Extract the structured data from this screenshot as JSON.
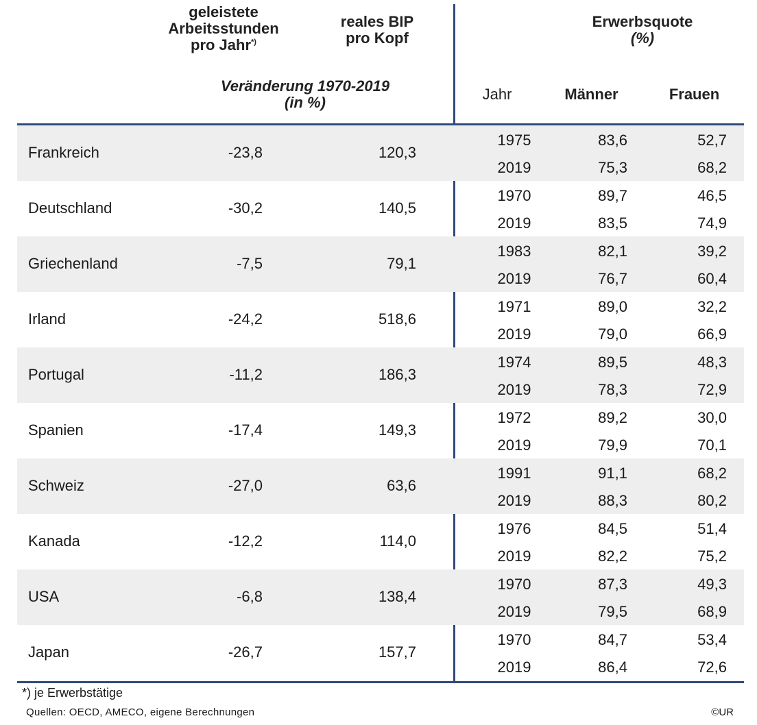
{
  "colors": {
    "rule": "#2f4a7a",
    "shade": "#eeeeee"
  },
  "header": {
    "hours_line1": "geleistete",
    "hours_line2": "Arbeitsstunden",
    "hours_line3": "pro Jahr",
    "hours_sup": "*)",
    "gdp_line1": "reales BIP",
    "gdp_line2": "pro Kopf",
    "change_line1": "Veränderung 1970-2019",
    "change_line2": "(in %)",
    "erwerb_line1": "Erwerbsquote",
    "erwerb_line2": "(%)",
    "col_year": "Jahr",
    "col_men": "Männer",
    "col_women": "Frauen"
  },
  "rows": [
    {
      "country": "Frankreich",
      "hours": "-23,8",
      "gdp": "120,3",
      "y1": "1975",
      "m1": "83,6",
      "w1": "52,7",
      "y2": "2019",
      "m2": "75,3",
      "w2": "68,2"
    },
    {
      "country": "Deutschland",
      "hours": "-30,2",
      "gdp": "140,5",
      "y1": "1970",
      "m1": "89,7",
      "w1": "46,5",
      "y2": "2019",
      "m2": "83,5",
      "w2": "74,9"
    },
    {
      "country": "Griechenland",
      "hours": "-7,5",
      "gdp": "79,1",
      "y1": "1983",
      "m1": "82,1",
      "w1": "39,2",
      "y2": "2019",
      "m2": "76,7",
      "w2": "60,4"
    },
    {
      "country": "Irland",
      "hours": "-24,2",
      "gdp": "518,6",
      "y1": "1971",
      "m1": "89,0",
      "w1": "32,2",
      "y2": "2019",
      "m2": "79,0",
      "w2": "66,9"
    },
    {
      "country": "Portugal",
      "hours": "-11,2",
      "gdp": "186,3",
      "y1": "1974",
      "m1": "89,5",
      "w1": "48,3",
      "y2": "2019",
      "m2": "78,3",
      "w2": "72,9"
    },
    {
      "country": "Spanien",
      "hours": "-17,4",
      "gdp": "149,3",
      "y1": "1972",
      "m1": "89,2",
      "w1": "30,0",
      "y2": "2019",
      "m2": "79,9",
      "w2": "70,1"
    },
    {
      "country": "Schweiz",
      "hours": "-27,0",
      "gdp": "63,6",
      "y1": "1991",
      "m1": "91,1",
      "w1": "68,2",
      "y2": "2019",
      "m2": "88,3",
      "w2": "80,2"
    },
    {
      "country": "Kanada",
      "hours": "-12,2",
      "gdp": "114,0",
      "y1": "1976",
      "m1": "84,5",
      "w1": "51,4",
      "y2": "2019",
      "m2": "82,2",
      "w2": "75,2"
    },
    {
      "country": "USA",
      "hours": "-6,8",
      "gdp": "138,4",
      "y1": "1970",
      "m1": "87,3",
      "w1": "49,3",
      "y2": "2019",
      "m2": "79,5",
      "w2": "68,9"
    },
    {
      "country": "Japan",
      "hours": "-26,7",
      "gdp": "157,7",
      "y1": "1970",
      "m1": "84,7",
      "w1": "53,4",
      "y2": "2019",
      "m2": "86,4",
      "w2": "72,6"
    }
  ],
  "footer": {
    "footnote": "*) je Erwerbstätige",
    "sources": "Quellen: OECD, AMECO, eigene Berechnungen",
    "copyright": "©UR"
  }
}
